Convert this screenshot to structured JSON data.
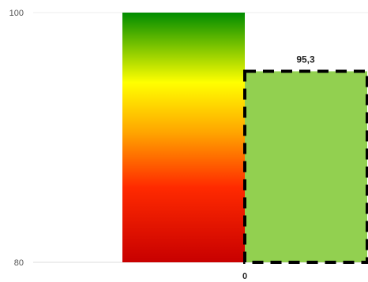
{
  "chart_data": {
    "type": "bar",
    "title": "",
    "xlabel": "",
    "ylabel": "",
    "ylim": [
      80,
      100
    ],
    "y_ticks": [
      80,
      100
    ],
    "y_tick_labels": [
      "80",
      "100"
    ],
    "x_tick_labels": [
      "0"
    ],
    "grid": true,
    "scale_band": {
      "from": 80,
      "to": 100,
      "gradient": [
        "#008c00",
        "#ffff00",
        "#ff6600",
        "#ff0000",
        "#c80000"
      ]
    },
    "value": 95.3,
    "value_label": "95,3",
    "value_bar_color": "#92d050",
    "value_bar_border": "dashed-black"
  }
}
